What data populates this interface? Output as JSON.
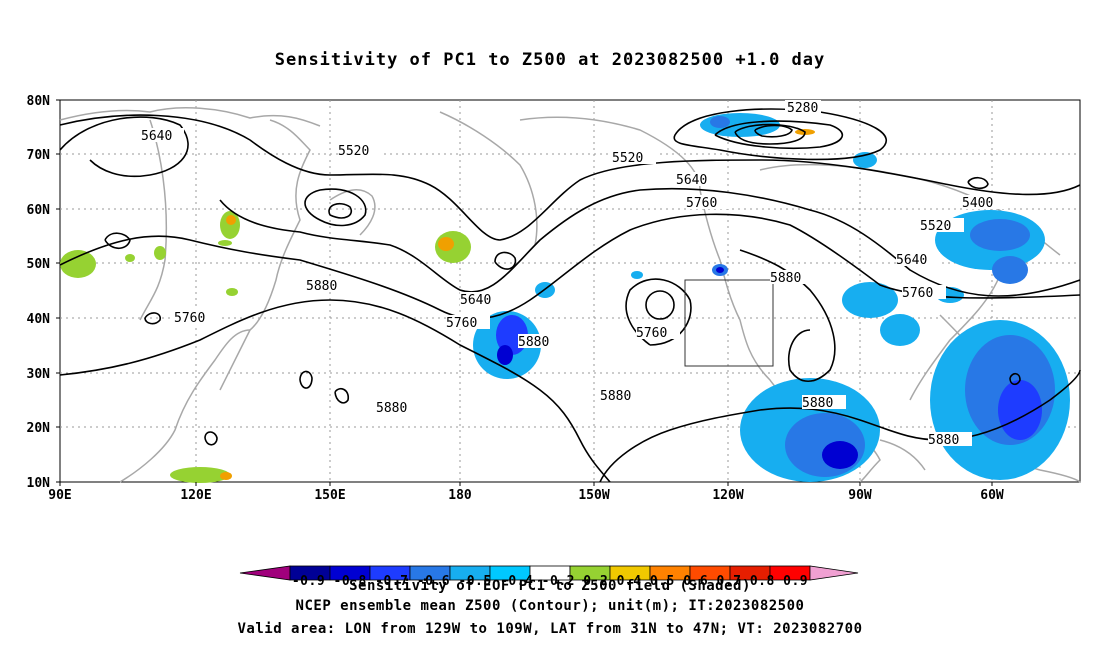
{
  "title": "Sensitivity of PC1 to Z500 at 2023082500 +1.0 day",
  "lat_labels": [
    "80N",
    "70N",
    "60N",
    "50N",
    "40N",
    "30N",
    "20N",
    "10N"
  ],
  "lon_labels": [
    "90E",
    "120E",
    "150E",
    "180",
    "150W",
    "120W",
    "90W",
    "60W"
  ],
  "contour_labels": [
    {
      "text": "5280"
    },
    {
      "text": "5640"
    },
    {
      "text": "5520"
    },
    {
      "text": "5520"
    },
    {
      "text": "5640"
    },
    {
      "text": "5760"
    },
    {
      "text": "5400"
    },
    {
      "text": "5520"
    },
    {
      "text": "5640"
    },
    {
      "text": "5760"
    },
    {
      "text": "5880"
    },
    {
      "text": "5880"
    },
    {
      "text": "5760"
    },
    {
      "text": "5640"
    },
    {
      "text": "5760"
    },
    {
      "text": "5880"
    },
    {
      "text": "5760"
    },
    {
      "text": "5880"
    },
    {
      "text": "5880"
    },
    {
      "text": "5880"
    },
    {
      "text": "5880"
    }
  ],
  "colorbar": {
    "colors": [
      "#a0007c",
      "#000096",
      "#0000d2",
      "#1e3cff",
      "#2878e6",
      "#17aef0",
      "#00c8ff",
      "#ffffff",
      "#96d232",
      "#f0c800",
      "#ff8200",
      "#ff4b00",
      "#e61e00",
      "#ff0000",
      "#f0a0d2"
    ],
    "labels_overlap_text": "-0.9 -0.8 -0.7 -0.6 -0.5 -0.4 -0.2 0.2 0.4 0.5 0.6 0.7 0.8 0.9"
  },
  "captions": {
    "line1": "Sensitivity of EOF PC1 to Z500 field (Shaded)",
    "line2": "NCEP ensemble mean Z500 (Contour); unit(m); IT:2023082500",
    "line3": "Valid area: LON from 129W to 109W, LAT from 31N to 47N; VT: 2023082700"
  }
}
